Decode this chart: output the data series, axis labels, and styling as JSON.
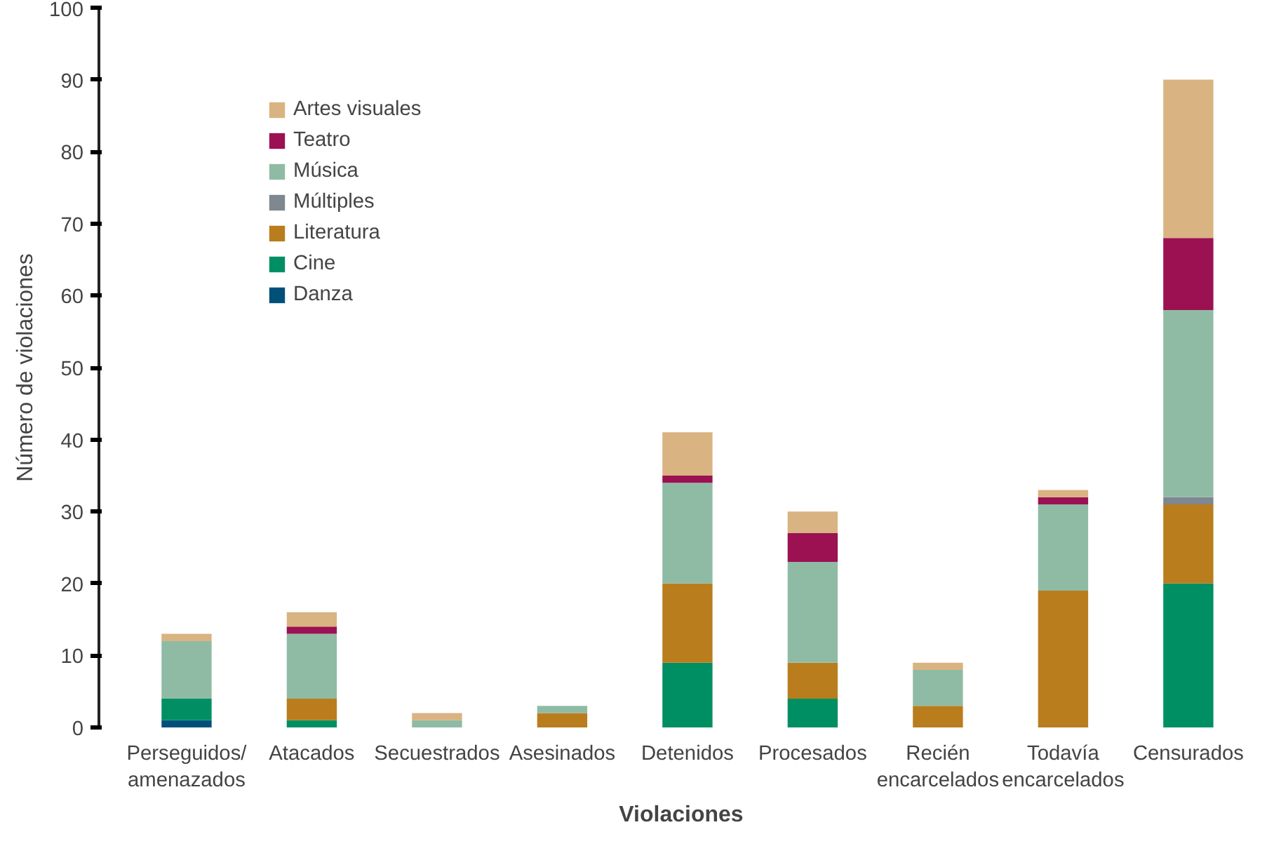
{
  "chart_data": {
    "type": "bar",
    "stacked": true,
    "xlabel": "Violaciones",
    "ylabel": "Número de violaciones",
    "categories": [
      "Perseguidos/ amenazados",
      "Atacados",
      "Secuestrados",
      "Asesinados",
      "Detenidos",
      "Procesados",
      "Recién encarcelados",
      "Todavía encarcelados",
      "Censurados"
    ],
    "series": [
      {
        "name": "Danza",
        "color": "#00507a",
        "values": [
          1,
          0,
          0,
          0,
          0,
          0,
          0,
          0,
          0
        ]
      },
      {
        "name": "Cine",
        "color": "#008f63",
        "values": [
          3,
          1,
          0,
          0,
          9,
          4,
          0,
          0,
          20
        ]
      },
      {
        "name": "Literatura",
        "color": "#b97d1d",
        "values": [
          0,
          3,
          0,
          2,
          11,
          5,
          3,
          19,
          11
        ]
      },
      {
        "name": "Múltiples",
        "color": "#7f8790",
        "values": [
          0,
          0,
          0,
          0,
          0,
          0,
          0,
          0,
          1
        ]
      },
      {
        "name": "Música",
        "color": "#8fbba5",
        "values": [
          8,
          9,
          1,
          1,
          14,
          14,
          5,
          12,
          26
        ]
      },
      {
        "name": "Teatro",
        "color": "#9b1152",
        "values": [
          0,
          1,
          0,
          0,
          1,
          4,
          0,
          1,
          10
        ]
      },
      {
        "name": "Artes visuales",
        "color": "#d9b382",
        "values": [
          1,
          2,
          1,
          0,
          6,
          3,
          1,
          1,
          22
        ]
      }
    ],
    "ylim": [
      0,
      100
    ],
    "yticks": [
      0,
      10,
      20,
      30,
      40,
      50,
      60,
      70,
      80,
      90,
      100
    ],
    "grid": false,
    "legend": "top left"
  }
}
